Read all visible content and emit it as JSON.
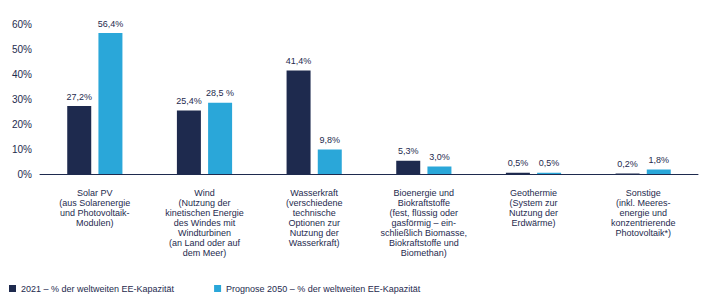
{
  "chart_data": {
    "type": "bar",
    "categories": [
      "Solar PV\n(aus Solarenergie\nund Photovoltaik-\nModulen)",
      "Wind\n(Nutzung der\nkinetischen Energie\ndes Windes mit\nWindturbinen\n(an Land oder auf\ndem Meer)",
      "Wasserkraft\n(verschiedene\ntechnische\nOptionen zur\nNutzung der\nWasserkraft)",
      "Bioenergie und\nBiokraftstoffe\n(fest, flüssig oder\ngasförmig – ein-\nschließlich Biomasse,\nBiokraftstoffe und\nBiomethan)",
      "Geothermie\n(System zur\nNutzung der\nErdwärme)",
      "Sonstige\n(inkl. Meeres-\nenergie und\nkonzentrierende\nPhotovoltaik*)"
    ],
    "series": [
      {
        "name": "2021 – % der weltweiten EE-Kapazität",
        "color": "#1e2a4e",
        "values": [
          27.2,
          25.4,
          41.4,
          5.3,
          0.5,
          0.2
        ],
        "value_labels": [
          "27,2%",
          "25,4%",
          "41,4%",
          "5,3%",
          "0,5%",
          "0,2%"
        ]
      },
      {
        "name": "Prognose 2050 – % der weltweiten EE-Kapazität",
        "color": "#2aa7d9",
        "values": [
          56.4,
          28.5,
          9.8,
          3.0,
          0.5,
          1.8
        ],
        "value_labels": [
          "56,4%",
          "28,5 %",
          "9,8%",
          "3,0%",
          "0,5%",
          "1,8%"
        ]
      }
    ],
    "ylim": [
      0,
      60
    ],
    "yticks": [
      {
        "value": 0,
        "label": "0%"
      },
      {
        "value": 10,
        "label": "10%"
      },
      {
        "value": 20,
        "label": "20%"
      },
      {
        "value": 30,
        "label": "30%"
      },
      {
        "value": 40,
        "label": "40%"
      },
      {
        "value": 50,
        "label": "50%"
      },
      {
        "value": 60,
        "label": "60%"
      }
    ],
    "grid": false,
    "legend": "bottom-left",
    "data_labels": true
  }
}
